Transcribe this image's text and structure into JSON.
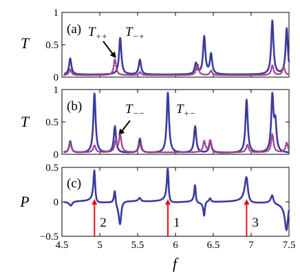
{
  "chart_data": [
    {
      "type": "line",
      "panel_label": "(a)",
      "ylabel": "T",
      "xlim": [
        4.5,
        7.5
      ],
      "ylim": [
        0,
        1
      ],
      "yticks": [
        0,
        0.5,
        1
      ],
      "ytick_labels": [
        "0",
        "0.5",
        "1"
      ],
      "series": [
        {
          "name": "T_{-+}",
          "color": "#3a3a9e",
          "style": "solid",
          "peaks": [
            {
              "x": 4.61,
              "h": 0.29
            },
            {
              "x": 5.27,
              "h": 0.61
            },
            {
              "x": 5.53,
              "h": 0.27
            },
            {
              "x": 6.27,
              "h": 0.21
            },
            {
              "x": 6.38,
              "h": 0.62
            },
            {
              "x": 6.47,
              "h": 0.35
            },
            {
              "x": 7.28,
              "h": 0.87
            },
            {
              "x": 7.47,
              "h": 0.75
            }
          ],
          "baseline": 0.04
        },
        {
          "name": "T_{++}",
          "color": "#a0448c",
          "style": "dotted",
          "peaks": [
            {
              "x": 4.61,
              "h": 0.12
            },
            {
              "x": 5.2,
              "h": 0.28
            },
            {
              "x": 5.53,
              "h": 0.08
            },
            {
              "x": 6.29,
              "h": 0.21
            },
            {
              "x": 6.47,
              "h": 0.1
            },
            {
              "x": 7.28,
              "h": 0.18
            },
            {
              "x": 7.43,
              "h": 0.16
            }
          ],
          "baseline": 0.03
        }
      ],
      "annotations": [
        {
          "label": "T",
          "sub": "++"
        },
        {
          "label": "T",
          "sub": "−+"
        }
      ]
    },
    {
      "type": "line",
      "panel_label": "(b)",
      "ylabel": "T",
      "xlim": [
        4.5,
        7.5
      ],
      "ylim": [
        0,
        1
      ],
      "yticks": [
        0,
        0.5,
        1
      ],
      "ytick_labels": [
        "0",
        "0.5",
        "1"
      ],
      "series": [
        {
          "name": "T_{+-}",
          "color": "#3a3a9e",
          "style": "solid",
          "peaks": [
            {
              "x": 4.61,
              "h": 0.2
            },
            {
              "x": 4.93,
              "h": 0.94
            },
            {
              "x": 5.2,
              "h": 0.43
            },
            {
              "x": 5.53,
              "h": 0.24
            },
            {
              "x": 5.9,
              "h": 0.95
            },
            {
              "x": 6.26,
              "h": 0.43
            },
            {
              "x": 6.46,
              "h": 0.2
            },
            {
              "x": 6.94,
              "h": 0.84
            },
            {
              "x": 7.28,
              "h": 0.88
            },
            {
              "x": 7.32,
              "h": 0.45
            }
          ],
          "baseline": 0.02
        },
        {
          "name": "T_{--}",
          "color": "#a0448c",
          "style": "dotted",
          "peaks": [
            {
              "x": 4.61,
              "h": 0.18
            },
            {
              "x": 4.93,
              "h": 0.14
            },
            {
              "x": 5.21,
              "h": 0.2
            },
            {
              "x": 5.27,
              "h": 0.3
            },
            {
              "x": 5.53,
              "h": 0.17
            },
            {
              "x": 6.38,
              "h": 0.2
            },
            {
              "x": 6.46,
              "h": 0.22
            },
            {
              "x": 6.95,
              "h": 0.15
            },
            {
              "x": 7.28,
              "h": 0.31
            },
            {
              "x": 7.47,
              "h": 0.18
            }
          ],
          "baseline": 0.03
        }
      ],
      "annotations": [
        {
          "label": "T",
          "sub": "−−"
        },
        {
          "label": "T",
          "sub": "+−"
        }
      ]
    },
    {
      "type": "line",
      "panel_label": "(c)",
      "ylabel": "P",
      "xlabel": "f",
      "xlim": [
        4.5,
        7.5
      ],
      "ylim": [
        -0.5,
        0.5
      ],
      "yticks": [
        -0.5,
        0,
        0.5
      ],
      "ytick_labels": [
        "−0.5",
        "0",
        "0.5"
      ],
      "xticks": [
        4.5,
        5,
        5.5,
        6,
        6.5,
        7,
        7.5
      ],
      "xtick_labels": [
        "4.5",
        "5",
        "5.5",
        "6",
        "6.5",
        "7",
        "7.5"
      ],
      "series": [
        {
          "name": "P",
          "color": "#3a3a9e",
          "style": "solid",
          "components": [
            {
              "x": 4.62,
              "a": -0.06,
              "w": 0.025
            },
            {
              "x": 4.93,
              "a": 0.45,
              "w": 0.014
            },
            {
              "x": 5.2,
              "a": 0.2,
              "w": 0.012
            },
            {
              "x": 5.27,
              "a": -0.32,
              "w": 0.02
            },
            {
              "x": 5.53,
              "a": 0.05,
              "w": 0.02
            },
            {
              "x": 5.9,
              "a": 0.48,
              "w": 0.014
            },
            {
              "x": 6.26,
              "a": 0.25,
              "w": 0.012
            },
            {
              "x": 6.38,
              "a": -0.2,
              "w": 0.012
            },
            {
              "x": 6.46,
              "a": 0.05,
              "w": 0.015
            },
            {
              "x": 6.94,
              "a": 0.36,
              "w": 0.025
            },
            {
              "x": 7.28,
              "a": 0.12,
              "w": 0.02
            },
            {
              "x": 7.47,
              "a": -0.4,
              "w": 0.025
            }
          ]
        }
      ],
      "markers": [
        {
          "x": 4.93,
          "label": "2",
          "color": "#e01010"
        },
        {
          "x": 5.9,
          "label": "1",
          "color": "#e01010"
        },
        {
          "x": 6.94,
          "label": "3",
          "color": "#e01010"
        }
      ]
    }
  ]
}
